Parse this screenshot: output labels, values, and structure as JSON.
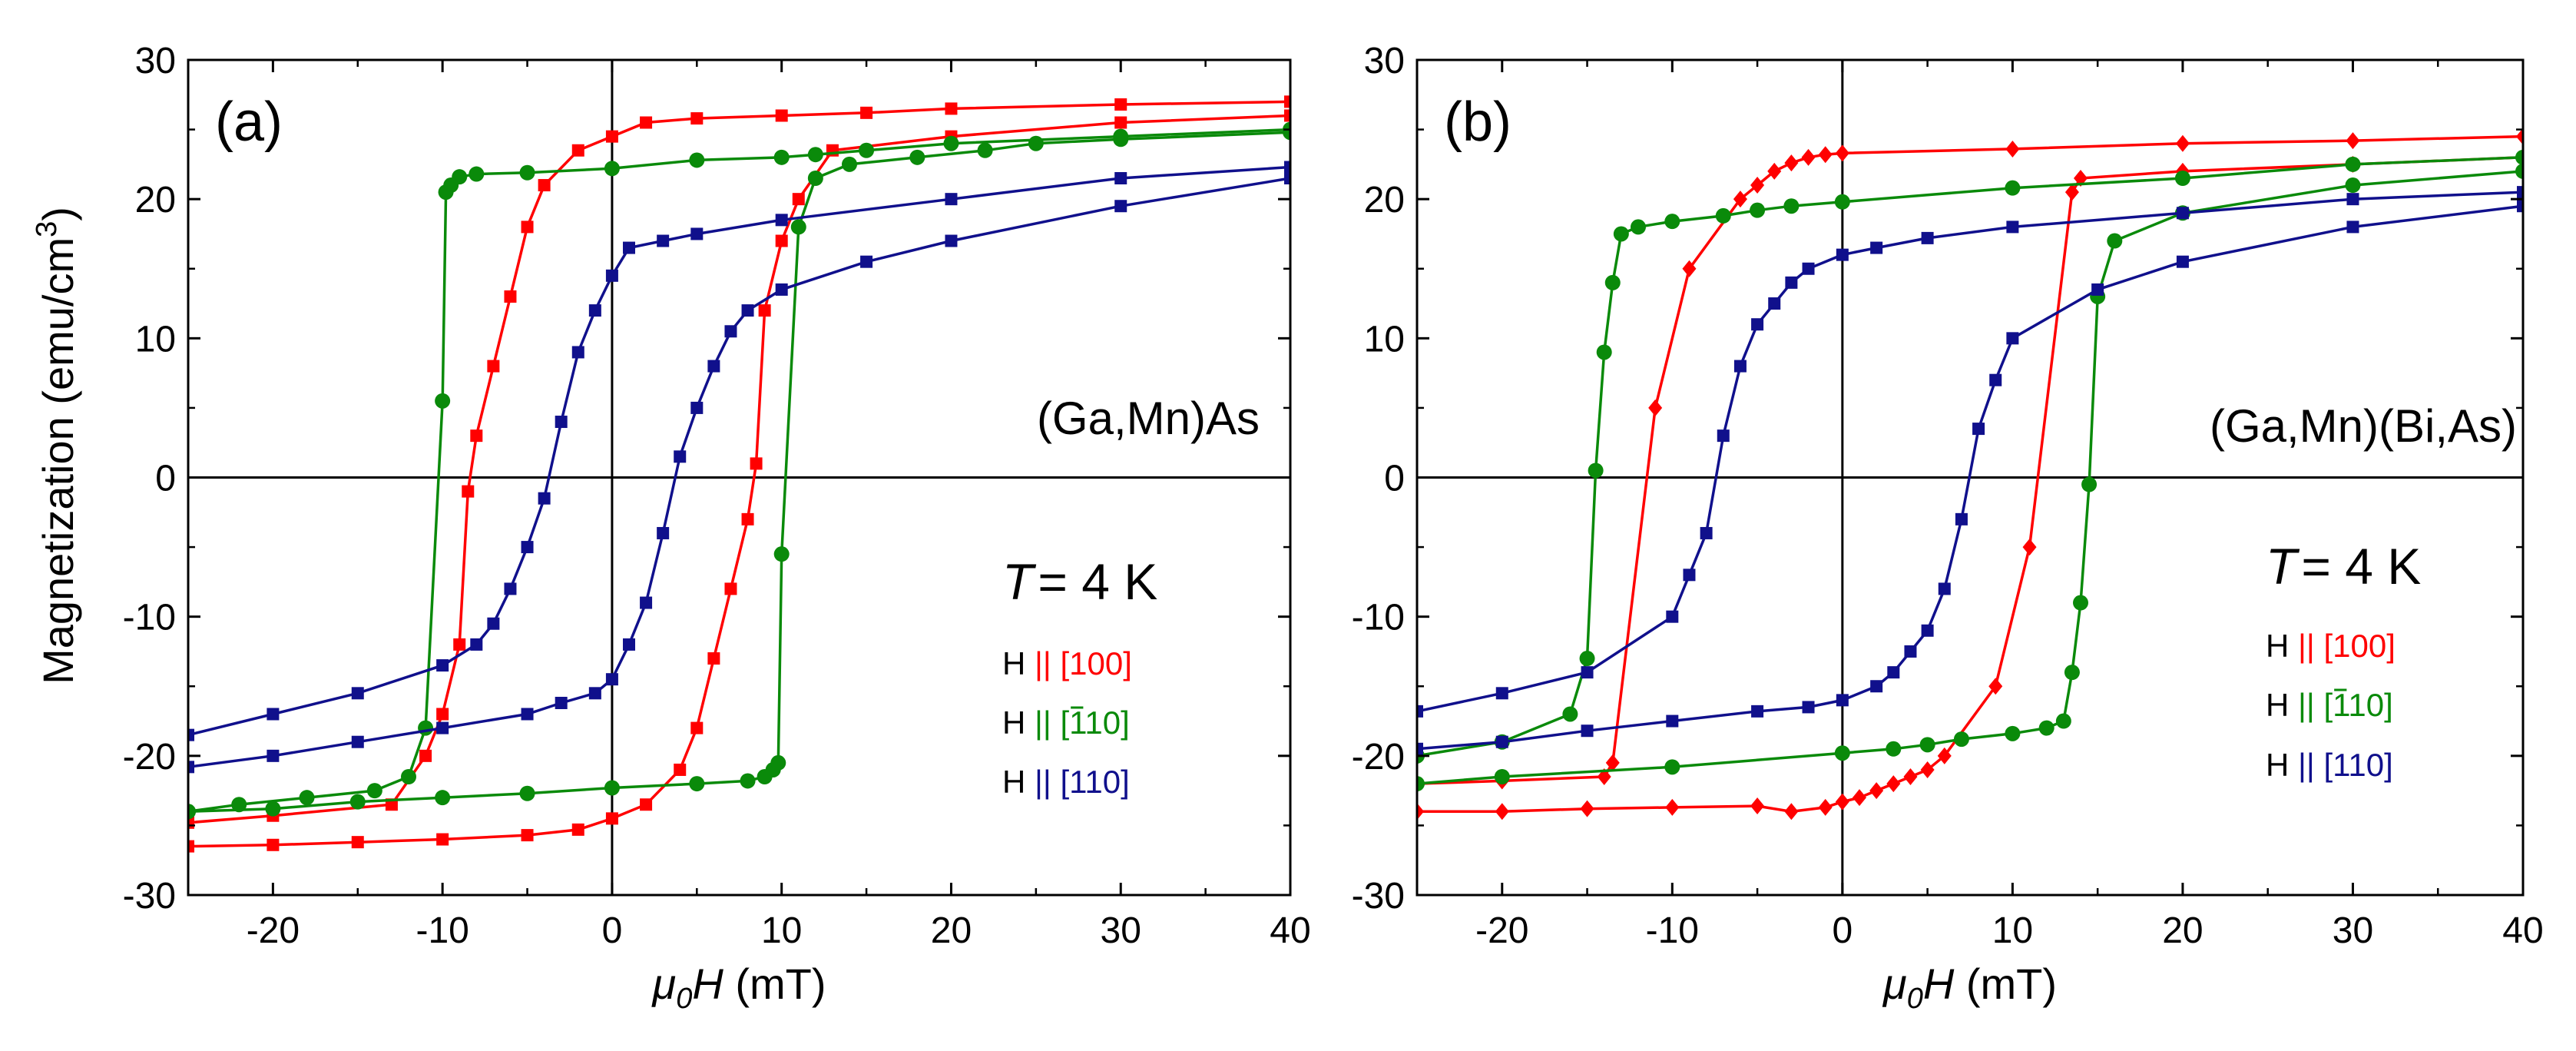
{
  "figure": {
    "ylabel_main": "Magnetization (emu/cm",
    "ylabel_sup": "3",
    "ylabel_close": ")"
  },
  "colors": {
    "red": "#ff0000",
    "green": "#0a8a0a",
    "blue": "#10108c"
  },
  "chart_data": [
    {
      "type": "line",
      "panel_label": "(a)",
      "material": "(Ga,Mn)As",
      "temp_T": "T",
      "temp_value": "= 4 K",
      "xlabel_mu": "μ",
      "xlabel_sub": "0",
      "xlabel_H": "H",
      "xlabel_unit": " (mT)",
      "xlim": [
        -25,
        40
      ],
      "ylim": [
        -30,
        30
      ],
      "xticks": [
        -20,
        -10,
        0,
        10,
        20,
        30,
        40
      ],
      "xtick_labels": [
        "-20",
        "-10",
        "0",
        "10",
        "20",
        "30",
        "40"
      ],
      "yticks": [
        -30,
        -20,
        -10,
        0,
        10,
        20,
        30
      ],
      "ytick_labels": [
        "-30",
        "-20",
        "-10",
        "0",
        "10",
        "20",
        "30"
      ],
      "legend": [
        {
          "prefix": "H ",
          "dir": "|| [100]",
          "color": "#ff0000"
        },
        {
          "prefix": "H ",
          "dir": "|| [110]",
          "bar": "1",
          "color": "#0a8a0a"
        },
        {
          "prefix": "H ",
          "dir": "|| [110]",
          "color": "#10108c"
        }
      ],
      "series": [
        {
          "name": "H || [100]",
          "color": "#ff0000",
          "marker": "square",
          "x": [
            40,
            30,
            20,
            15,
            10,
            5,
            2,
            0,
            -2,
            -4,
            -5,
            -6,
            -7,
            -8,
            -8.5,
            -9,
            -10,
            -11,
            -13,
            -20,
            -25
          ],
          "y": [
            27,
            26.8,
            26.5,
            26.2,
            26,
            25.8,
            25.5,
            24.5,
            23.5,
            21,
            18,
            13,
            8,
            3,
            -1,
            -12,
            -17,
            -20,
            -23.5,
            -24.3,
            -24.8
          ]
        },
        {
          "name": "H || [100]",
          "color": "#ff0000",
          "marker": "square",
          "x": [
            -25,
            -20,
            -15,
            -10,
            -5,
            -2,
            0,
            2,
            4,
            5,
            6,
            7,
            8,
            8.5,
            9,
            10,
            11,
            13,
            20,
            30,
            40
          ],
          "y": [
            -26.5,
            -26.4,
            -26.2,
            -26,
            -25.7,
            -25.3,
            -24.5,
            -23.5,
            -21,
            -18,
            -13,
            -8,
            -3,
            1,
            12,
            17,
            20,
            23.5,
            24.5,
            25.5,
            26
          ]
        },
        {
          "name": "H || [-110]",
          "color": "#0a8a0a",
          "marker": "circle",
          "x": [
            40,
            30,
            20,
            15,
            12,
            10,
            5,
            0,
            -5,
            -8,
            -9,
            -9.5,
            -9.8,
            -10,
            -11,
            -12,
            -14,
            -18,
            -22,
            -25
          ],
          "y": [
            25,
            24.5,
            24,
            23.5,
            23.2,
            23,
            22.8,
            22.2,
            21.9,
            21.8,
            21.6,
            21,
            20.5,
            5.5,
            -18,
            -21.5,
            -22.5,
            -23,
            -23.5,
            -24
          ]
        },
        {
          "name": "H || [-110]",
          "color": "#0a8a0a",
          "marker": "circle",
          "x": [
            -25,
            -20,
            -15,
            -10,
            -5,
            0,
            5,
            8,
            9,
            9.5,
            9.8,
            10,
            11,
            12,
            14,
            18,
            22,
            25,
            30,
            40
          ],
          "y": [
            -24,
            -23.8,
            -23.3,
            -23,
            -22.7,
            -22.3,
            -22,
            -21.8,
            -21.5,
            -21,
            -20.5,
            -5.5,
            18,
            21.5,
            22.5,
            23,
            23.5,
            24,
            24.3,
            24.8
          ]
        },
        {
          "name": "H || [110]",
          "color": "#10108c",
          "marker": "square",
          "x": [
            40,
            30,
            20,
            10,
            5,
            3,
            1,
            0,
            -1,
            -2,
            -3,
            -4,
            -5,
            -6,
            -7,
            -8,
            -10,
            -15,
            -20,
            -25
          ],
          "y": [
            22.3,
            21.5,
            20,
            18.5,
            17.5,
            17,
            16.5,
            14.5,
            12,
            9,
            4,
            -1.5,
            -5,
            -8,
            -10.5,
            -12,
            -13.5,
            -15.5,
            -17,
            -18.5
          ]
        },
        {
          "name": "H || [110]",
          "color": "#10108c",
          "marker": "square",
          "x": [
            -25,
            -20,
            -15,
            -10,
            -5,
            -3,
            -1,
            0,
            1,
            2,
            3,
            4,
            5,
            6,
            7,
            8,
            10,
            15,
            20,
            30,
            40
          ],
          "y": [
            -20.8,
            -20,
            -19,
            -18,
            -17,
            -16.2,
            -15.5,
            -14.5,
            -12,
            -9,
            -4,
            1.5,
            5,
            8,
            10.5,
            12,
            13.5,
            15.5,
            17,
            19.5,
            21.5
          ]
        }
      ]
    },
    {
      "type": "line",
      "panel_label": "(b)",
      "material": "(Ga,Mn)(Bi,As)",
      "temp_T": "T",
      "temp_value": "= 4 K",
      "xlabel_mu": "μ",
      "xlabel_sub": "0",
      "xlabel_H": "H",
      "xlabel_unit": " (mT)",
      "xlim": [
        -25,
        40
      ],
      "ylim": [
        -30,
        30
      ],
      "xticks": [
        -20,
        -10,
        0,
        10,
        20,
        30,
        40
      ],
      "xtick_labels": [
        "-20",
        "-10",
        "0",
        "10",
        "20",
        "30",
        "40"
      ],
      "yticks": [
        -30,
        -20,
        -10,
        0,
        10,
        20,
        30
      ],
      "ytick_labels": [
        "-30",
        "-20",
        "-10",
        "0",
        "10",
        "20",
        "30"
      ],
      "legend": [
        {
          "prefix": "H ",
          "dir": "|| [100]",
          "color": "#ff0000"
        },
        {
          "prefix": "H ",
          "dir": "|| [110]",
          "bar": "1",
          "color": "#0a8a0a"
        },
        {
          "prefix": "H ",
          "dir": "|| [110]",
          "color": "#10108c"
        }
      ],
      "series": [
        {
          "name": "H || [100]",
          "color": "#ff0000",
          "marker": "diamond",
          "x": [
            40,
            30,
            20,
            10,
            0,
            -1,
            -2,
            -3,
            -4,
            -5,
            -6,
            -9,
            -11,
            -13.5,
            -14,
            -20,
            -25
          ],
          "y": [
            24.5,
            24.2,
            24,
            23.6,
            23.3,
            23.2,
            23,
            22.6,
            22,
            21,
            20,
            15,
            5,
            -20.5,
            -21.5,
            -21.8,
            -22
          ]
        },
        {
          "name": "H || [100]",
          "color": "#ff0000",
          "marker": "diamond",
          "x": [
            -25,
            -20,
            -15,
            -10,
            -5,
            -3,
            -1,
            0,
            1,
            2,
            3,
            4,
            5,
            6,
            9,
            11,
            13.5,
            14,
            20,
            30,
            40
          ],
          "y": [
            -24,
            -24,
            -23.8,
            -23.7,
            -23.6,
            -24,
            -23.7,
            -23.3,
            -23,
            -22.5,
            -22,
            -21.5,
            -21,
            -20,
            -15,
            -5,
            20.5,
            21.5,
            22,
            22.5,
            23
          ]
        },
        {
          "name": "H || [-110]",
          "color": "#0a8a0a",
          "marker": "circle",
          "x": [
            40,
            30,
            20,
            10,
            0,
            -3,
            -5,
            -7,
            -10,
            -12,
            -13,
            -13.5,
            -14,
            -14.5,
            -15,
            -16,
            -20,
            -25
          ],
          "y": [
            23,
            22.5,
            21.5,
            20.8,
            19.8,
            19.5,
            19.2,
            18.8,
            18.4,
            18,
            17.5,
            14,
            9,
            0.5,
            -13,
            -17,
            -19,
            -20
          ]
        },
        {
          "name": "H || [-110]",
          "color": "#0a8a0a",
          "marker": "circle",
          "x": [
            -25,
            -20,
            -10,
            0,
            3,
            5,
            7,
            10,
            12,
            13,
            13.5,
            14,
            14.5,
            15,
            16,
            20,
            30,
            40
          ],
          "y": [
            -22,
            -21.5,
            -20.8,
            -19.8,
            -19.5,
            -19.2,
            -18.8,
            -18.4,
            -18,
            -17.5,
            -14,
            -9,
            -0.5,
            13,
            17,
            19,
            21,
            22
          ]
        },
        {
          "name": "H || [110]",
          "color": "#10108c",
          "marker": "square",
          "x": [
            40,
            30,
            20,
            10,
            5,
            2,
            0,
            -2,
            -3,
            -4,
            -5,
            -6,
            -7,
            -8,
            -9,
            -10,
            -15,
            -20,
            -25
          ],
          "y": [
            20.5,
            20,
            19,
            18,
            17.2,
            16.5,
            16,
            15,
            14,
            12.5,
            11,
            8,
            3,
            -4,
            -7,
            -10,
            -14,
            -15.5,
            -16.8
          ]
        },
        {
          "name": "H || [110]",
          "color": "#10108c",
          "marker": "square",
          "x": [
            -25,
            -20,
            -15,
            -10,
            -5,
            -2,
            0,
            2,
            3,
            4,
            5,
            6,
            7,
            8,
            9,
            10,
            15,
            20,
            30,
            40
          ],
          "y": [
            -19.5,
            -19,
            -18.2,
            -17.5,
            -16.8,
            -16.5,
            -16,
            -15,
            -14,
            -12.5,
            -11,
            -8,
            -3,
            3.5,
            7,
            10,
            13.5,
            15.5,
            18,
            19.5
          ]
        }
      ]
    }
  ]
}
